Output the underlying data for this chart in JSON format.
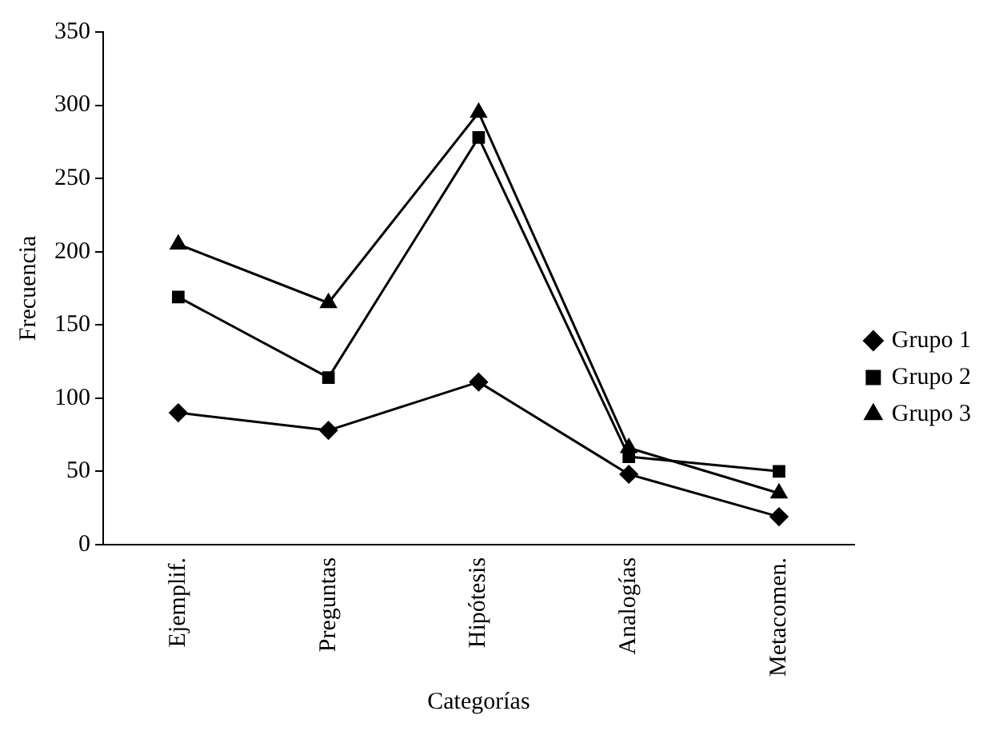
{
  "chart_data": {
    "type": "line",
    "xlabel": "Categorías",
    "ylabel": "Frecuencia",
    "categories": [
      "Ejemplif.",
      "Preguntas",
      "Hipótesis",
      "Analogías",
      "Metacomen."
    ],
    "series": [
      {
        "name": "Grupo 1",
        "color": "#000000",
        "marker": "diamond",
        "values": [
          90,
          78,
          111,
          48,
          19
        ]
      },
      {
        "name": "Grupo 2",
        "color": "#000000",
        "marker": "square",
        "values": [
          169,
          114,
          278,
          60,
          50
        ]
      },
      {
        "name": "Grupo 3",
        "color": "#000000",
        "marker": "triangle",
        "values": [
          205,
          165,
          295,
          66,
          35
        ]
      }
    ],
    "ylim": [
      0,
      350
    ],
    "yticks": [
      0,
      50,
      100,
      150,
      200,
      250,
      300,
      350
    ],
    "grid": false,
    "legend": "right",
    "line_style": "solid"
  }
}
